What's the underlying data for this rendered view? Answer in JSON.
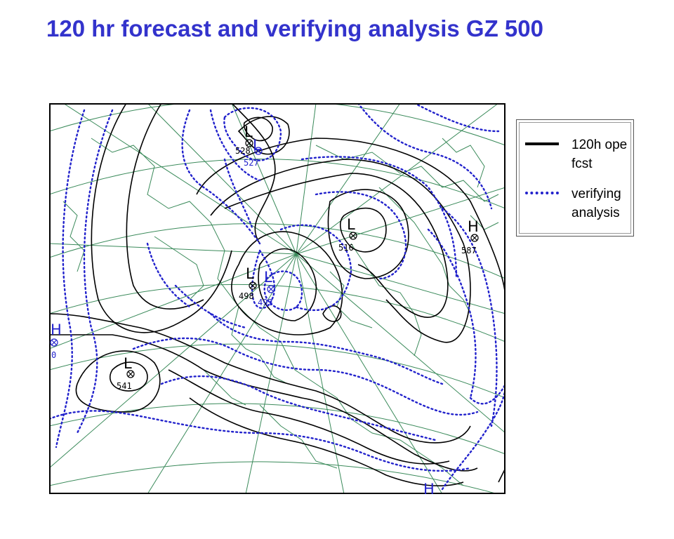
{
  "title": "120 hr forecast and verifying analysis GZ 500",
  "legend": {
    "items": [
      {
        "label": "120h ope\nfcst",
        "style": "solid",
        "color": "#000000"
      },
      {
        "label": "verifying\nanalysis",
        "style": "dotted",
        "color": "#2222cc"
      }
    ]
  },
  "map": {
    "colors": {
      "forecast": "#000000",
      "analysis": "#2222cc",
      "geography": "#3a8a5a",
      "frame": "#000000"
    },
    "centers": [
      {
        "symbol": "L",
        "value": "528",
        "kind": "forecast"
      },
      {
        "symbol": "L",
        "value": "527",
        "kind": "analysis"
      },
      {
        "symbol": "L",
        "value": "516",
        "kind": "forecast"
      },
      {
        "symbol": "H",
        "value": "587",
        "kind": "forecast"
      },
      {
        "symbol": "L",
        "value": "498",
        "kind": "forecast"
      },
      {
        "symbol": "L",
        "value": "493",
        "kind": "analysis"
      },
      {
        "symbol": "H",
        "value": "0",
        "kind": "analysis"
      },
      {
        "symbol": "L",
        "value": "541",
        "kind": "forecast"
      },
      {
        "symbol": "H",
        "value": "",
        "kind": "analysis"
      }
    ]
  }
}
